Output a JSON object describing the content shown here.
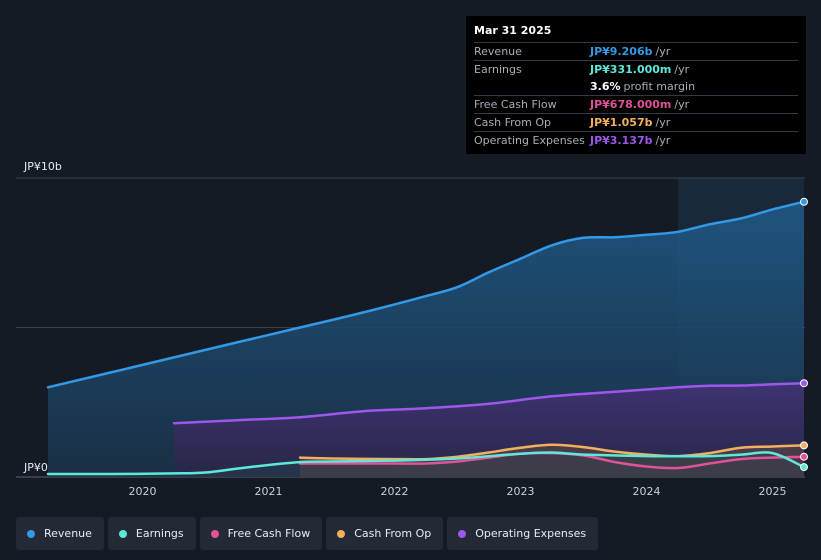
{
  "tooltip": {
    "date": "Mar 31 2025",
    "rows": [
      {
        "label": "Revenue",
        "value": "JP¥9.206b",
        "unit": "/yr",
        "color": "#3399e6"
      },
      {
        "label": "Earnings",
        "value": "JP¥331.000m",
        "unit": "/yr",
        "color": "#5ee8d9"
      },
      {
        "label": "",
        "value": "3.6%",
        "unit": "profit margin",
        "color": "#ffffff"
      },
      {
        "label": "Free Cash Flow",
        "value": "JP¥678.000m",
        "unit": "/yr",
        "color": "#e0529a"
      },
      {
        "label": "Cash From Op",
        "value": "JP¥1.057b",
        "unit": "/yr",
        "color": "#f2b05e"
      },
      {
        "label": "Operating Expenses",
        "value": "JP¥3.137b",
        "unit": "/yr",
        "color": "#9d57ea"
      }
    ]
  },
  "legend": [
    {
      "label": "Revenue",
      "color": "#3399e6"
    },
    {
      "label": "Earnings",
      "color": "#5ee8d9"
    },
    {
      "label": "Free Cash Flow",
      "color": "#e0529a"
    },
    {
      "label": "Cash From Op",
      "color": "#f2b05e"
    },
    {
      "label": "Operating Expenses",
      "color": "#9d57ea"
    }
  ],
  "chart_data": {
    "type": "area",
    "title": "",
    "xlabel": "",
    "ylabel": "",
    "ylim": [
      0,
      10
    ],
    "xlim": [
      2019.25,
      2025.25
    ],
    "y_unit": "JP¥ billions",
    "y_axis_labels": [
      "JP¥0",
      "JP¥10b"
    ],
    "x_ticks": [
      2020,
      2021,
      2022,
      2023,
      2024,
      2025
    ],
    "x_tick_labels": [
      "2020",
      "2021",
      "2022",
      "2023",
      "2024",
      "2025"
    ],
    "forecast_start": 2024.25,
    "series": [
      {
        "name": "Revenue",
        "color": "#3399e6",
        "x": [
          2019.25,
          2019.75,
          2020.25,
          2020.75,
          2021.25,
          2021.75,
          2022.25,
          2022.5,
          2022.75,
          2023.0,
          2023.25,
          2023.5,
          2023.75,
          2024.0,
          2024.25,
          2024.5,
          2024.75,
          2025.0,
          2025.25
        ],
        "values": [
          3.0,
          3.5,
          4.0,
          4.5,
          5.0,
          5.5,
          6.05,
          6.35,
          6.85,
          7.3,
          7.75,
          8.0,
          8.02,
          8.1,
          8.2,
          8.45,
          8.65,
          8.95,
          9.206
        ]
      },
      {
        "name": "Earnings",
        "color": "#5ee8d9",
        "x": [
          2019.25,
          2019.75,
          2020.25,
          2020.5,
          2020.75,
          2021.0,
          2021.25,
          2021.5,
          2022.0,
          2022.5,
          2023.0,
          2023.25,
          2023.5,
          2024.0,
          2024.5,
          2024.75,
          2025.0,
          2025.25
        ],
        "values": [
          0.1,
          0.1,
          0.12,
          0.15,
          0.28,
          0.4,
          0.5,
          0.52,
          0.55,
          0.62,
          0.78,
          0.82,
          0.75,
          0.7,
          0.7,
          0.75,
          0.8,
          0.331
        ]
      },
      {
        "name": "Free Cash Flow",
        "color": "#e0529a",
        "x": [
          2021.25,
          2021.5,
          2022.0,
          2022.25,
          2022.5,
          2022.75,
          2023.0,
          2023.25,
          2023.5,
          2023.75,
          2024.0,
          2024.25,
          2024.5,
          2024.75,
          2025.0,
          2025.25
        ],
        "values": [
          0.45,
          0.45,
          0.45,
          0.45,
          0.52,
          0.65,
          0.78,
          0.8,
          0.72,
          0.5,
          0.35,
          0.3,
          0.45,
          0.6,
          0.65,
          0.678
        ]
      },
      {
        "name": "Cash From Op",
        "color": "#f2b05e",
        "x": [
          2021.25,
          2021.5,
          2022.0,
          2022.25,
          2022.5,
          2022.75,
          2023.0,
          2023.25,
          2023.5,
          2023.75,
          2024.0,
          2024.25,
          2024.5,
          2024.75,
          2025.0,
          2025.25
        ],
        "values": [
          0.65,
          0.62,
          0.6,
          0.6,
          0.68,
          0.82,
          0.98,
          1.08,
          1.0,
          0.85,
          0.75,
          0.7,
          0.8,
          0.98,
          1.02,
          1.057
        ]
      },
      {
        "name": "Operating Expenses",
        "color": "#9d57ea",
        "x": [
          2020.25,
          2020.75,
          2021.25,
          2021.75,
          2022.25,
          2022.75,
          2023.25,
          2023.75,
          2024.25,
          2024.5,
          2024.75,
          2025.0,
          2025.25
        ],
        "values": [
          1.8,
          1.9,
          2.0,
          2.2,
          2.3,
          2.45,
          2.7,
          2.85,
          3.0,
          3.05,
          3.06,
          3.1,
          3.137
        ]
      }
    ]
  }
}
